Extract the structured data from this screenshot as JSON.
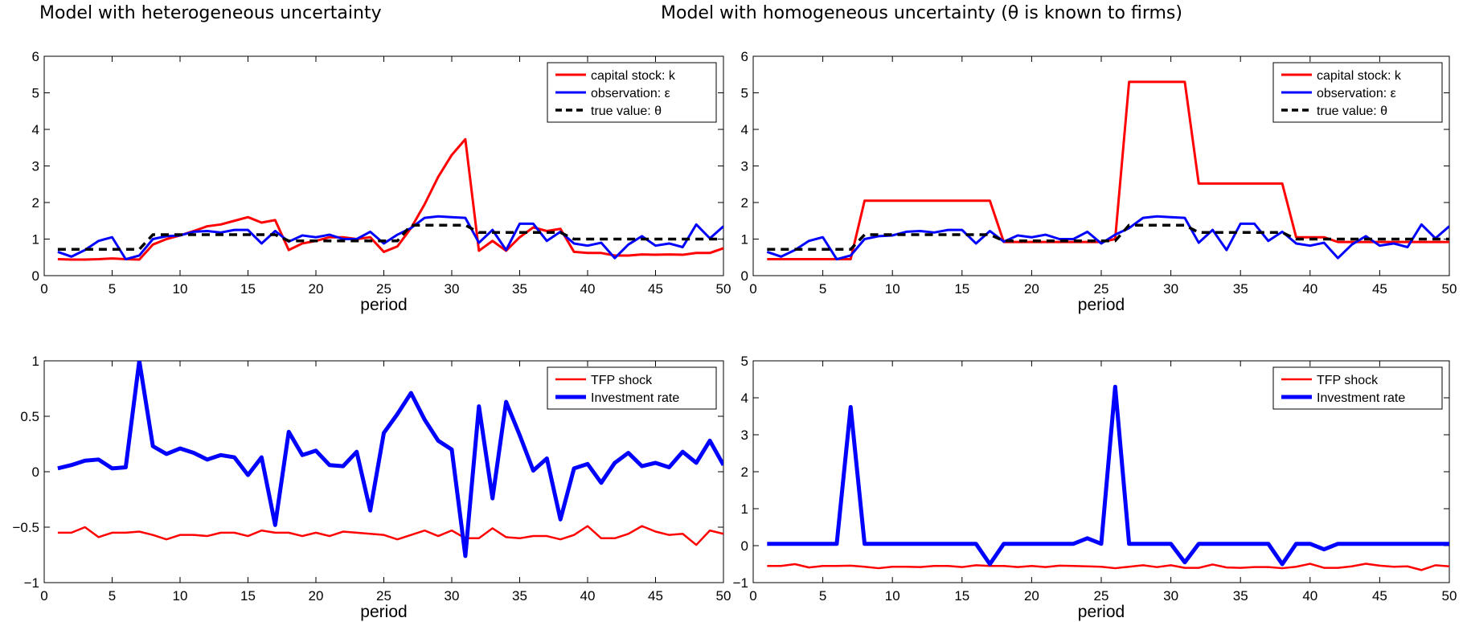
{
  "titles": {
    "left": "Model with heterogeneous uncertainty",
    "right": "Model with homogeneous uncertainty (θ is known to firms)"
  },
  "chart_data": [
    {
      "id": "top-left",
      "type": "line",
      "xlabel": "period",
      "ylabel": "",
      "xlim": [
        0,
        50
      ],
      "ylim": [
        0,
        6
      ],
      "xticks": [
        0,
        5,
        10,
        15,
        20,
        25,
        30,
        35,
        40,
        45,
        50
      ],
      "yticks": [
        0,
        1,
        2,
        3,
        4,
        5,
        6
      ],
      "legend_position": "top-right",
      "x": [
        1,
        2,
        3,
        4,
        5,
        6,
        7,
        8,
        9,
        10,
        11,
        12,
        13,
        14,
        15,
        16,
        17,
        18,
        19,
        20,
        21,
        22,
        23,
        24,
        25,
        26,
        27,
        28,
        29,
        30,
        31,
        32,
        33,
        34,
        35,
        36,
        37,
        38,
        39,
        40,
        41,
        42,
        43,
        44,
        45,
        46,
        47,
        48,
        49,
        50
      ],
      "series": [
        {
          "name": "capital stock: k",
          "color": "#ff0000",
          "dash": "solid",
          "width": 3,
          "values": [
            0.45,
            0.44,
            0.44,
            0.45,
            0.47,
            0.45,
            0.44,
            0.85,
            1.0,
            1.1,
            1.22,
            1.35,
            1.4,
            1.5,
            1.6,
            1.45,
            1.52,
            0.7,
            0.88,
            0.95,
            1.05,
            1.05,
            1.0,
            1.05,
            0.65,
            0.8,
            1.3,
            1.95,
            2.7,
            3.3,
            3.73,
            0.68,
            0.95,
            0.68,
            1.05,
            1.32,
            1.22,
            1.28,
            0.65,
            0.62,
            0.62,
            0.55,
            0.55,
            0.58,
            0.57,
            0.58,
            0.57,
            0.62,
            0.62,
            0.75
          ]
        },
        {
          "name": "observation: ε",
          "color": "#0000ff",
          "dash": "solid",
          "width": 3,
          "values": [
            0.65,
            0.52,
            0.7,
            0.95,
            1.05,
            0.45,
            0.55,
            1.0,
            1.08,
            1.1,
            1.2,
            1.22,
            1.18,
            1.25,
            1.25,
            0.88,
            1.22,
            0.93,
            1.1,
            1.05,
            1.12,
            1.0,
            1.0,
            1.2,
            0.88,
            1.12,
            1.3,
            1.58,
            1.62,
            1.6,
            1.58,
            0.9,
            1.25,
            0.7,
            1.42,
            1.42,
            0.95,
            1.2,
            0.88,
            0.82,
            0.9,
            0.48,
            0.85,
            1.08,
            0.82,
            0.88,
            0.78,
            1.4,
            1.02,
            1.35
          ]
        },
        {
          "name": "true value: θ",
          "color": "#000000",
          "dash": "dashed",
          "width": 3.5,
          "values": [
            0.72,
            0.72,
            0.72,
            0.72,
            0.72,
            0.72,
            0.72,
            1.12,
            1.12,
            1.12,
            1.12,
            1.12,
            1.12,
            1.12,
            1.12,
            1.12,
            1.12,
            0.95,
            0.95,
            0.95,
            0.95,
            0.95,
            0.95,
            0.95,
            0.95,
            0.95,
            1.38,
            1.38,
            1.38,
            1.38,
            1.38,
            1.18,
            1.18,
            1.18,
            1.18,
            1.18,
            1.18,
            1.18,
            1.0,
            1.0,
            1.0,
            1.0,
            1.0,
            1.0,
            1.0,
            1.0,
            1.0,
            1.0,
            1.0,
            1.0
          ]
        }
      ]
    },
    {
      "id": "top-right",
      "type": "line",
      "xlabel": "period",
      "ylabel": "",
      "xlim": [
        0,
        50
      ],
      "ylim": [
        0,
        6
      ],
      "xticks": [
        0,
        5,
        10,
        15,
        20,
        25,
        30,
        35,
        40,
        45,
        50
      ],
      "yticks": [
        0,
        1,
        2,
        3,
        4,
        5,
        6
      ],
      "legend_position": "top-right",
      "x": [
        1,
        2,
        3,
        4,
        5,
        6,
        7,
        8,
        9,
        10,
        11,
        12,
        13,
        14,
        15,
        16,
        17,
        18,
        19,
        20,
        21,
        22,
        23,
        24,
        25,
        26,
        27,
        28,
        29,
        30,
        31,
        32,
        33,
        34,
        35,
        36,
        37,
        38,
        39,
        40,
        41,
        42,
        43,
        44,
        45,
        46,
        47,
        48,
        49,
        50
      ],
      "series": [
        {
          "name": "capital stock: k",
          "color": "#ff0000",
          "dash": "solid",
          "width": 3,
          "values": [
            0.45,
            0.45,
            0.45,
            0.45,
            0.45,
            0.45,
            0.45,
            2.05,
            2.05,
            2.05,
            2.05,
            2.05,
            2.05,
            2.05,
            2.05,
            2.05,
            2.05,
            0.92,
            0.92,
            0.92,
            0.92,
            0.92,
            0.92,
            0.92,
            0.92,
            1.0,
            5.3,
            5.3,
            5.3,
            5.3,
            5.3,
            2.52,
            2.52,
            2.52,
            2.52,
            2.52,
            2.52,
            2.52,
            1.05,
            1.05,
            1.05,
            0.92,
            0.92,
            0.92,
            0.92,
            0.92,
            0.92,
            0.92,
            0.92,
            0.92
          ]
        },
        {
          "name": "observation: ε",
          "color": "#0000ff",
          "dash": "solid",
          "width": 3,
          "values": [
            0.65,
            0.52,
            0.7,
            0.95,
            1.05,
            0.45,
            0.55,
            1.0,
            1.08,
            1.1,
            1.2,
            1.22,
            1.18,
            1.25,
            1.25,
            0.88,
            1.22,
            0.93,
            1.1,
            1.05,
            1.12,
            1.0,
            1.0,
            1.2,
            0.88,
            1.12,
            1.3,
            1.58,
            1.62,
            1.6,
            1.58,
            0.9,
            1.25,
            0.7,
            1.42,
            1.42,
            0.95,
            1.2,
            0.88,
            0.82,
            0.9,
            0.48,
            0.85,
            1.08,
            0.82,
            0.88,
            0.78,
            1.4,
            1.02,
            1.35
          ]
        },
        {
          "name": "true value: θ",
          "color": "#000000",
          "dash": "dashed",
          "width": 3.5,
          "values": [
            0.72,
            0.72,
            0.72,
            0.72,
            0.72,
            0.72,
            0.72,
            1.12,
            1.12,
            1.12,
            1.12,
            1.12,
            1.12,
            1.12,
            1.12,
            1.12,
            1.12,
            0.95,
            0.95,
            0.95,
            0.95,
            0.95,
            0.95,
            0.95,
            0.95,
            0.95,
            1.38,
            1.38,
            1.38,
            1.38,
            1.38,
            1.18,
            1.18,
            1.18,
            1.18,
            1.18,
            1.18,
            1.18,
            1.0,
            1.0,
            1.0,
            1.0,
            1.0,
            1.0,
            1.0,
            1.0,
            1.0,
            1.0,
            1.0,
            1.0
          ]
        }
      ]
    },
    {
      "id": "bottom-left",
      "type": "line",
      "xlabel": "period",
      "ylabel": "",
      "xlim": [
        0,
        50
      ],
      "ylim": [
        -1,
        1
      ],
      "xticks": [
        0,
        5,
        10,
        15,
        20,
        25,
        30,
        35,
        40,
        45,
        50
      ],
      "yticks": [
        -1,
        -0.5,
        0,
        0.5,
        1
      ],
      "ytick_labels": [
        "−1",
        "−0.5",
        "0",
        "0.5",
        "1"
      ],
      "legend_position": "top-right",
      "x": [
        1,
        2,
        3,
        4,
        5,
        6,
        7,
        8,
        9,
        10,
        11,
        12,
        13,
        14,
        15,
        16,
        17,
        18,
        19,
        20,
        21,
        22,
        23,
        24,
        25,
        26,
        27,
        28,
        29,
        30,
        31,
        32,
        33,
        34,
        35,
        36,
        37,
        38,
        39,
        40,
        41,
        42,
        43,
        44,
        45,
        46,
        47,
        48,
        49,
        50
      ],
      "series": [
        {
          "name": "TFP shock",
          "color": "#ff0000",
          "dash": "solid",
          "width": 2.5,
          "values": [
            -0.55,
            -0.55,
            -0.5,
            -0.59,
            -0.55,
            -0.55,
            -0.54,
            -0.57,
            -0.61,
            -0.57,
            -0.57,
            -0.58,
            -0.55,
            -0.55,
            -0.58,
            -0.53,
            -0.55,
            -0.55,
            -0.58,
            -0.55,
            -0.58,
            -0.54,
            -0.55,
            -0.56,
            -0.57,
            -0.61,
            -0.57,
            -0.53,
            -0.58,
            -0.53,
            -0.6,
            -0.6,
            -0.51,
            -0.59,
            -0.6,
            -0.58,
            -0.58,
            -0.61,
            -0.57,
            -0.49,
            -0.6,
            -0.6,
            -0.56,
            -0.49,
            -0.54,
            -0.57,
            -0.56,
            -0.66,
            -0.53,
            -0.56
          ]
        },
        {
          "name": "Investment rate",
          "color": "#0000ff",
          "dash": "solid",
          "width": 5,
          "values": [
            0.03,
            0.06,
            0.1,
            0.11,
            0.03,
            0.04,
            1.0,
            0.23,
            0.16,
            0.21,
            0.17,
            0.11,
            0.15,
            0.13,
            -0.03,
            0.13,
            -0.48,
            0.36,
            0.15,
            0.19,
            0.06,
            0.05,
            0.18,
            -0.35,
            0.35,
            0.52,
            0.71,
            0.47,
            0.28,
            0.2,
            -0.76,
            0.59,
            -0.24,
            0.63,
            0.33,
            0.01,
            0.12,
            -0.43,
            0.03,
            0.07,
            -0.1,
            0.08,
            0.17,
            0.05,
            0.08,
            0.04,
            0.18,
            0.08,
            0.28,
            0.06
          ]
        }
      ]
    },
    {
      "id": "bottom-right",
      "type": "line",
      "xlabel": "period",
      "ylabel": "",
      "xlim": [
        0,
        50
      ],
      "ylim": [
        -1,
        5
      ],
      "xticks": [
        0,
        5,
        10,
        15,
        20,
        25,
        30,
        35,
        40,
        45,
        50
      ],
      "yticks": [
        -1,
        0,
        1,
        2,
        3,
        4,
        5
      ],
      "ytick_labels": [
        "−1",
        "0",
        "1",
        "2",
        "3",
        "4",
        "5"
      ],
      "legend_position": "top-right",
      "x": [
        1,
        2,
        3,
        4,
        5,
        6,
        7,
        8,
        9,
        10,
        11,
        12,
        13,
        14,
        15,
        16,
        17,
        18,
        19,
        20,
        21,
        22,
        23,
        24,
        25,
        26,
        27,
        28,
        29,
        30,
        31,
        32,
        33,
        34,
        35,
        36,
        37,
        38,
        39,
        40,
        41,
        42,
        43,
        44,
        45,
        46,
        47,
        48,
        49,
        50
      ],
      "series": [
        {
          "name": "TFP shock",
          "color": "#ff0000",
          "dash": "solid",
          "width": 2.5,
          "values": [
            -0.55,
            -0.55,
            -0.5,
            -0.59,
            -0.55,
            -0.55,
            -0.54,
            -0.57,
            -0.61,
            -0.57,
            -0.57,
            -0.58,
            -0.55,
            -0.55,
            -0.58,
            -0.53,
            -0.55,
            -0.55,
            -0.58,
            -0.55,
            -0.58,
            -0.54,
            -0.55,
            -0.56,
            -0.57,
            -0.61,
            -0.57,
            -0.53,
            -0.58,
            -0.53,
            -0.6,
            -0.6,
            -0.51,
            -0.59,
            -0.6,
            -0.58,
            -0.58,
            -0.61,
            -0.57,
            -0.49,
            -0.6,
            -0.6,
            -0.56,
            -0.49,
            -0.54,
            -0.57,
            -0.56,
            -0.66,
            -0.53,
            -0.56
          ]
        },
        {
          "name": "Investment rate",
          "color": "#0000ff",
          "dash": "solid",
          "width": 5,
          "values": [
            0.05,
            0.05,
            0.05,
            0.05,
            0.05,
            0.05,
            3.75,
            0.05,
            0.05,
            0.05,
            0.05,
            0.05,
            0.05,
            0.05,
            0.05,
            0.05,
            -0.5,
            0.05,
            0.05,
            0.05,
            0.05,
            0.05,
            0.05,
            0.2,
            0.05,
            4.3,
            0.05,
            0.05,
            0.05,
            0.05,
            -0.45,
            0.05,
            0.05,
            0.05,
            0.05,
            0.05,
            0.05,
            -0.5,
            0.05,
            0.05,
            -0.1,
            0.05,
            0.05,
            0.05,
            0.05,
            0.05,
            0.05,
            0.05,
            0.05,
            0.05
          ]
        }
      ]
    }
  ]
}
